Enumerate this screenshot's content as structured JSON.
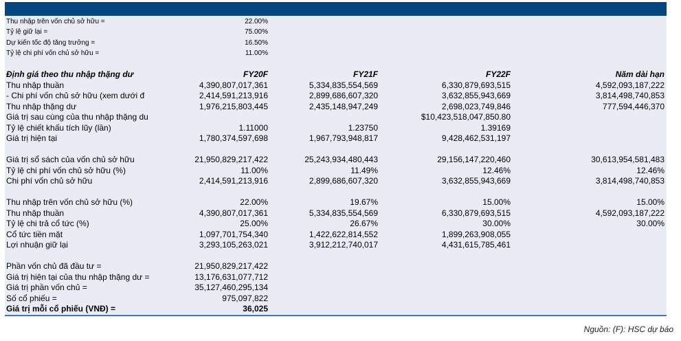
{
  "colors": {
    "header": "#054580",
    "panel": "#e9ecf4",
    "rule": "#3d78b8"
  },
  "assumptions": [
    {
      "label": "Thu nhập trên vốn chủ sở hữu =",
      "value": "22.00%"
    },
    {
      "label": "Tỷ lệ giữ lại =",
      "value": "75.00%"
    },
    {
      "label": "Dự kiến tốc độ tăng trưởng =",
      "value": "16.50%"
    },
    {
      "label": "Tỷ lệ chi phí vốn chủ sở hữu =",
      "value": "11.00%"
    }
  ],
  "table": {
    "title": "Định giá theo thu nhập thặng dư",
    "columns": [
      "FY20F",
      "FY21F",
      "FY22F",
      "Năm dài hạn"
    ],
    "groups": [
      [
        {
          "label": "Thu nhập thuần",
          "values": [
            "4,390,807,017,361",
            "5,334,835,554,569",
            "6,330,879,693,515",
            "4,592,093,187,222"
          ]
        },
        {
          "label": " - Chi phí vốn chủ sở hữu (xem dưới đ",
          "values": [
            "2,414,591,213,916",
            "2,899,686,607,320",
            "3,632,855,943,669",
            "3,814,498,740,853"
          ]
        },
        {
          "label": "Thu nhập thặng dư",
          "values": [
            "1,976,215,803,445",
            "2,435,148,947,249",
            "2,698,023,749,846",
            "777,594,446,370"
          ]
        },
        {
          "label": "Giá trị sau cùng của thu nhập thặng du",
          "values": [
            "",
            "",
            "$10,423,518,047,850.80",
            ""
          ]
        },
        {
          "label": "Tỷ lệ chiết khấu tích lũy (lần)",
          "values": [
            "1.11000",
            "1.23750",
            "1.39169",
            ""
          ]
        },
        {
          "label": "Giá trị hiện tại",
          "values": [
            "1,780,374,597,698",
            "1,967,793,948,817",
            "9,428,462,531,197",
            ""
          ]
        }
      ],
      [
        {
          "label": "Giá trị sổ sách của vốn chủ sở hữu",
          "values": [
            "21,950,829,217,422",
            "25,243,934,480,443",
            "29,156,147,220,460",
            "30,613,954,581,483"
          ]
        },
        {
          "label": "Tỷ lệ chi phí vốn chủ sở hữu (%)",
          "values": [
            "11.00%",
            "11.49%",
            "12.46%",
            "12.46%"
          ]
        },
        {
          "label": "Chi phí vốn chủ sở hữu",
          "values": [
            "2,414,591,213,916",
            "2,899,686,607,320",
            "3,632,855,943,669",
            "3,814,498,740,853"
          ]
        }
      ],
      [
        {
          "label": "Thu nhập trên vốn chủ sở hữu (%)",
          "values": [
            "22.00%",
            "19.67%",
            "15.00%",
            "15.00%"
          ]
        },
        {
          "label": "Thu nhập thuần",
          "values": [
            "4,390,807,017,361",
            "5,334,835,554,569",
            "6,330,879,693,515",
            "4,592,093,187,222"
          ]
        },
        {
          "label": "Tỷ lệ chi trả cổ tức (%)",
          "values": [
            "25.00%",
            "26.67%",
            "30.00%",
            "30.00%"
          ]
        },
        {
          "label": "Cổ tức tiền mặt",
          "values": [
            "1,097,701,754,340",
            "1,422,622,814,552",
            "1,899,263,908,055",
            ""
          ]
        },
        {
          "label": "Lợi nhuận giữ lại",
          "values": [
            "3,293,105,263,021",
            "3,912,212,740,017",
            "4,431,615,785,461",
            ""
          ]
        }
      ]
    ]
  },
  "summary": [
    {
      "label": "Phần vốn chủ đã đầu tư =",
      "value": "21,950,829,217,422"
    },
    {
      "label": "Giá trị hiện tại của thu nhập thặng dư =",
      "value": "13,176,631,077,712"
    },
    {
      "label": "Giá trị phần vốn chủ =",
      "value": "35,127,460,295,134"
    },
    {
      "label": "Số cổ phiếu =",
      "value": "975,097,822"
    },
    {
      "label": "Giá trị mỗi cổ phiếu (VNĐ) =",
      "value": "36,025",
      "bold": true
    }
  ],
  "source": "Nguồn: (F): HSC dự báo"
}
